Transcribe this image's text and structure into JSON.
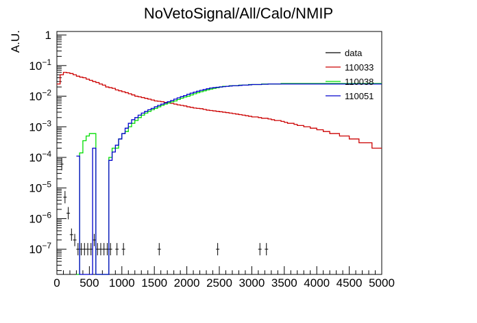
{
  "chart_data": {
    "type": "line",
    "title": "NoVetoSignal/All/Calo/NMIP",
    "xlabel": "",
    "ylabel": "A.U.",
    "xlim": [
      0,
      5000
    ],
    "ylim": [
      1.5e-08,
      1.3
    ],
    "y_scale": "log",
    "x_ticks": [
      0,
      500,
      1000,
      1500,
      2000,
      2500,
      3000,
      3500,
      4000,
      4500,
      5000
    ],
    "y_ticks": [
      {
        "value": 1,
        "base": "1",
        "exp": ""
      },
      {
        "value": 0.1,
        "base": "10",
        "exp": "−1"
      },
      {
        "value": 0.01,
        "base": "10",
        "exp": "−2"
      },
      {
        "value": 0.001,
        "base": "10",
        "exp": "−3"
      },
      {
        "value": 0.0001,
        "base": "10",
        "exp": "−4"
      },
      {
        "value": 1e-05,
        "base": "10",
        "exp": "−5"
      },
      {
        "value": 1e-06,
        "base": "10",
        "exp": "−6"
      },
      {
        "value": 1e-07,
        "base": "10",
        "exp": "−7"
      }
    ],
    "legend_position": "top-right",
    "bin_width": 50,
    "series": [
      {
        "name": "data",
        "color": "#000000",
        "style": "points",
        "x": [
          75,
          125,
          175,
          225,
          275,
          325,
          375,
          425,
          475,
          525,
          575,
          625,
          675,
          725,
          775,
          825,
          925,
          1025,
          1575,
          2475,
          3125,
          3225
        ],
        "y": [
          6e-05,
          5e-06,
          1.5e-06,
          3e-07,
          2e-07,
          1e-07,
          1e-07,
          1e-07,
          1e-07,
          1e-07,
          2e-07,
          1e-07,
          1e-07,
          1e-07,
          1e-07,
          1e-07,
          1e-07,
          1e-07,
          1e-07,
          1e-07,
          1e-07,
          1e-07
        ]
      },
      {
        "name": "110033",
        "color": "#cc0000",
        "style": "step",
        "x_start": 0,
        "values": [
          0.025,
          0.05,
          0.06,
          0.058,
          0.055,
          0.05,
          0.045,
          0.042,
          0.04,
          0.036,
          0.033,
          0.03,
          0.028,
          0.025,
          0.023,
          0.02,
          0.019,
          0.018,
          0.016,
          0.015,
          0.014,
          0.013,
          0.012,
          0.011,
          0.01,
          0.0095,
          0.009,
          0.0085,
          0.008,
          0.0075,
          0.007,
          0.0068,
          0.0066,
          0.0062,
          0.006,
          0.0058,
          0.0055,
          0.0052,
          0.005,
          0.0048,
          0.0045,
          0.0043,
          0.0041,
          0.004,
          0.0039,
          0.0037,
          0.0035,
          0.0034,
          0.0033,
          0.0032,
          0.0031,
          0.003,
          0.0029,
          0.0028,
          0.0027,
          0.0026,
          0.0025,
          0.0024,
          0.0023,
          0.0022,
          0.0021,
          0.0021,
          0.002,
          0.0019,
          0.0019,
          0.0018,
          0.0017,
          0.0016,
          0.0016,
          0.0015,
          0.0014,
          0.0013,
          0.0013,
          0.0012,
          0.0011,
          0.0011,
          0.001,
          0.001,
          0.0009,
          0.0009,
          0.0008,
          0.0008,
          0.0007,
          0.0007,
          0.0006,
          0.0006,
          0.0006,
          0.0005,
          0.0005,
          0.0005,
          0.0004,
          0.0004,
          0.0004,
          0.0003,
          0.0003,
          0.0003,
          0.0003,
          0.0002,
          0.0002,
          0.0002
        ]
      },
      {
        "name": "110038",
        "color": "#00dd00",
        "style": "step",
        "x_start": 300,
        "values": [
          0,
          0.00014,
          0.00035,
          0.0005,
          0.0006,
          0.0006,
          0,
          0,
          0,
          0,
          0.0001,
          0.0002,
          0.0002,
          0.0004,
          0.0006,
          0.0007,
          0.001,
          0.0013,
          0.0016,
          0.002,
          0.0024,
          0.0028,
          0.0032,
          0.0036,
          0.004,
          0.0045,
          0.005,
          0.0055,
          0.006,
          0.0065,
          0.007,
          0.0078,
          0.0086,
          0.0094,
          0.01,
          0.011,
          0.012,
          0.013,
          0.014,
          0.015,
          0.016,
          0.017,
          0.018,
          0.019,
          0.02,
          0.021,
          0.021,
          0.022,
          0.022,
          0.022,
          0.023,
          0.023,
          0.023,
          0.024,
          0.024,
          0.024,
          0.024,
          0.025,
          0.025,
          0.025,
          0.025,
          0.025,
          0.025,
          0.026,
          0.026,
          0.026,
          0.026,
          0.026,
          0.026,
          0.026,
          0.026,
          0.026,
          0.026,
          0.026,
          0.026,
          0.026,
          0.026,
          0.026,
          0.026,
          0.026,
          0.026,
          0.026,
          0.026,
          0.026,
          0.026,
          0.026,
          0.026,
          0.026,
          0.026,
          0.026,
          0.026,
          0.026,
          0.026,
          0.026
        ]
      },
      {
        "name": "110051",
        "color": "#0000cc",
        "style": "step",
        "x_start": 300,
        "values": [
          0.00011,
          0,
          0,
          0,
          0,
          0.0002,
          0,
          0,
          0,
          0,
          8e-05,
          0.00015,
          0.00025,
          0.0004,
          0.0006,
          0.0009,
          0.0013,
          0.0017,
          0.002,
          0.0024,
          0.0028,
          0.0032,
          0.0036,
          0.004,
          0.0045,
          0.005,
          0.0055,
          0.006,
          0.0066,
          0.0072,
          0.008,
          0.0088,
          0.0096,
          0.0105,
          0.0115,
          0.0125,
          0.0135,
          0.0145,
          0.0155,
          0.0165,
          0.0175,
          0.0185,
          0.019,
          0.0195,
          0.02,
          0.0205,
          0.021,
          0.0215,
          0.022,
          0.022,
          0.0225,
          0.023,
          0.023,
          0.0235,
          0.024,
          0.024,
          0.024,
          0.0245,
          0.0245,
          0.025,
          0.025,
          0.025,
          0.025,
          0.025,
          0.025,
          0.025,
          0.025,
          0.025,
          0.025,
          0.025,
          0.025,
          0.025,
          0.025,
          0.025,
          0.025,
          0.025,
          0.025,
          0.025,
          0.025,
          0.025,
          0.025,
          0.025,
          0.025,
          0.025,
          0.025,
          0.025,
          0.025,
          0.025,
          0.025,
          0.025,
          0.025,
          0.025,
          0.025,
          0.025,
          0.025
        ]
      }
    ]
  }
}
